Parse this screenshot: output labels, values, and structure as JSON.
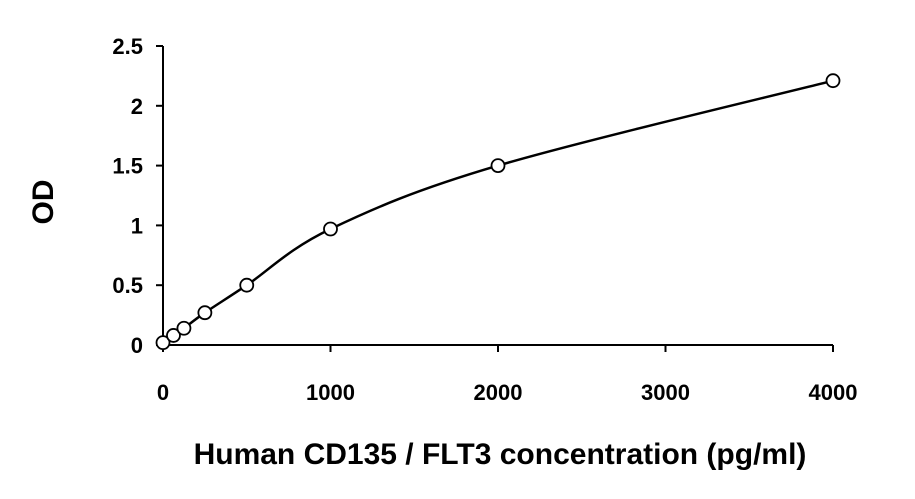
{
  "chart_data": {
    "type": "scatter",
    "title": "",
    "xlabel": "Human CD135 / FLT3 concentration (pg/ml)",
    "ylabel": "OD",
    "xlim": [
      0,
      4000
    ],
    "ylim": [
      0,
      2.5
    ],
    "x_ticks": [
      "0",
      "1000",
      "2000",
      "3000",
      "4000"
    ],
    "y_ticks": [
      "0",
      "0.5",
      "1",
      "1.5",
      "2",
      "2.5"
    ],
    "grid": false,
    "legend": "none",
    "series": [
      {
        "marker": "open-circle",
        "fit_line": "smooth",
        "points": [
          {
            "x": 0,
            "y": 0.02
          },
          {
            "x": 62.5,
            "y": 0.08
          },
          {
            "x": 125,
            "y": 0.14
          },
          {
            "x": 250,
            "y": 0.27
          },
          {
            "x": 500,
            "y": 0.5
          },
          {
            "x": 1000,
            "y": 0.97
          },
          {
            "x": 2000,
            "y": 1.5
          },
          {
            "x": 4000,
            "y": 2.21
          }
        ]
      }
    ],
    "colors": {
      "axis": "#000000",
      "line": "#000000",
      "marker_fill": "#ffffff"
    }
  }
}
